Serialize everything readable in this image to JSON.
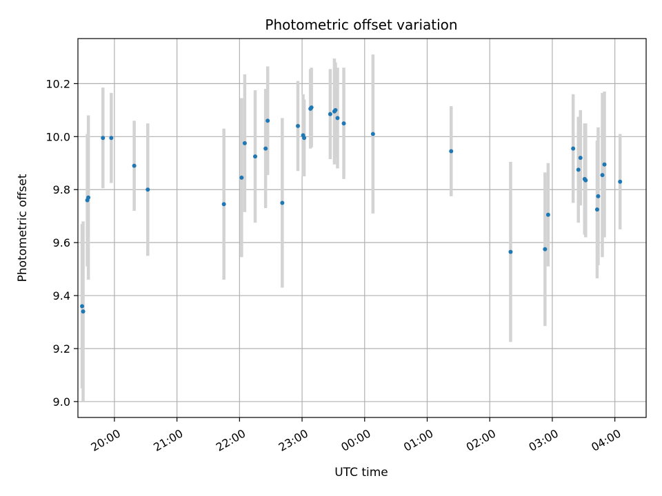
{
  "chart_data": {
    "type": "scatter",
    "title": "Photometric offset variation",
    "xlabel": "UTC time",
    "ylabel": "Photometric offset",
    "x_unit": "UTC clock time (times after 00:00 fall on the following day)",
    "xlim": [
      "19:25",
      "04:30"
    ],
    "ylim": [
      8.94,
      10.37
    ],
    "x_ticks": [
      "20:00",
      "21:00",
      "22:00",
      "23:00",
      "00:00",
      "01:00",
      "02:00",
      "03:00",
      "04:00"
    ],
    "y_ticks": [
      9.0,
      9.2,
      9.4,
      9.6,
      9.8,
      10.0,
      10.2
    ],
    "grid": true,
    "colors": {
      "point": "#1f77b4",
      "errorbar": "#d3d3d3",
      "grid": "#b0b0b0"
    },
    "series": [
      {
        "points": [
          {
            "x": "19:29",
            "y": 9.36,
            "err": 0.31
          },
          {
            "x": "19:30",
            "y": 9.34,
            "err": 0.34
          },
          {
            "x": "19:34",
            "y": 9.76,
            "err": 0.25
          },
          {
            "x": "19:35",
            "y": 9.77,
            "err": 0.31
          },
          {
            "x": "19:49",
            "y": 9.995,
            "err": 0.19
          },
          {
            "x": "19:57",
            "y": 9.995,
            "err": 0.17
          },
          {
            "x": "20:19",
            "y": 9.89,
            "err": 0.17
          },
          {
            "x": "20:32",
            "y": 9.8,
            "err": 0.25
          },
          {
            "x": "21:45",
            "y": 9.745,
            "err": 0.285
          },
          {
            "x": "22:02",
            "y": 9.845,
            "err": 0.3
          },
          {
            "x": "22:05",
            "y": 9.975,
            "err": 0.26
          },
          {
            "x": "22:15",
            "y": 9.925,
            "err": 0.25
          },
          {
            "x": "22:25",
            "y": 9.955,
            "err": 0.225
          },
          {
            "x": "22:27",
            "y": 10.06,
            "err": 0.205
          },
          {
            "x": "22:41",
            "y": 9.75,
            "err": 0.32
          },
          {
            "x": "22:56",
            "y": 10.04,
            "err": 0.17
          },
          {
            "x": "23:01",
            "y": 10.005,
            "err": 0.155
          },
          {
            "x": "23:02",
            "y": 9.995,
            "err": 0.145
          },
          {
            "x": "23:08",
            "y": 10.105,
            "err": 0.15
          },
          {
            "x": "23:09",
            "y": 10.11,
            "err": 0.15
          },
          {
            "x": "23:27",
            "y": 10.085,
            "err": 0.17
          },
          {
            "x": "23:31",
            "y": 10.095,
            "err": 0.2
          },
          {
            "x": "23:32",
            "y": 10.1,
            "err": 0.18
          },
          {
            "x": "23:34",
            "y": 10.07,
            "err": 0.19
          },
          {
            "x": "23:40",
            "y": 10.05,
            "err": 0.21
          },
          {
            "x": "00:08",
            "y": 10.01,
            "err": 0.3
          },
          {
            "x": "01:23",
            "y": 9.945,
            "err": 0.17
          },
          {
            "x": "02:20",
            "y": 9.565,
            "err": 0.34
          },
          {
            "x": "02:53",
            "y": 9.575,
            "err": 0.29
          },
          {
            "x": "02:56",
            "y": 9.705,
            "err": 0.195
          },
          {
            "x": "03:20",
            "y": 9.955,
            "err": 0.205
          },
          {
            "x": "03:25",
            "y": 9.875,
            "err": 0.2
          },
          {
            "x": "03:27",
            "y": 9.92,
            "err": 0.18
          },
          {
            "x": "03:31",
            "y": 9.84,
            "err": 0.21
          },
          {
            "x": "03:32",
            "y": 9.835,
            "err": 0.215
          },
          {
            "x": "03:43",
            "y": 9.725,
            "err": 0.26
          },
          {
            "x": "03:44",
            "y": 9.775,
            "err": 0.26
          },
          {
            "x": "03:48",
            "y": 9.855,
            "err": 0.31
          },
          {
            "x": "03:50",
            "y": 9.895,
            "err": 0.275
          },
          {
            "x": "04:05",
            "y": 9.83,
            "err": 0.18
          }
        ]
      }
    ]
  }
}
